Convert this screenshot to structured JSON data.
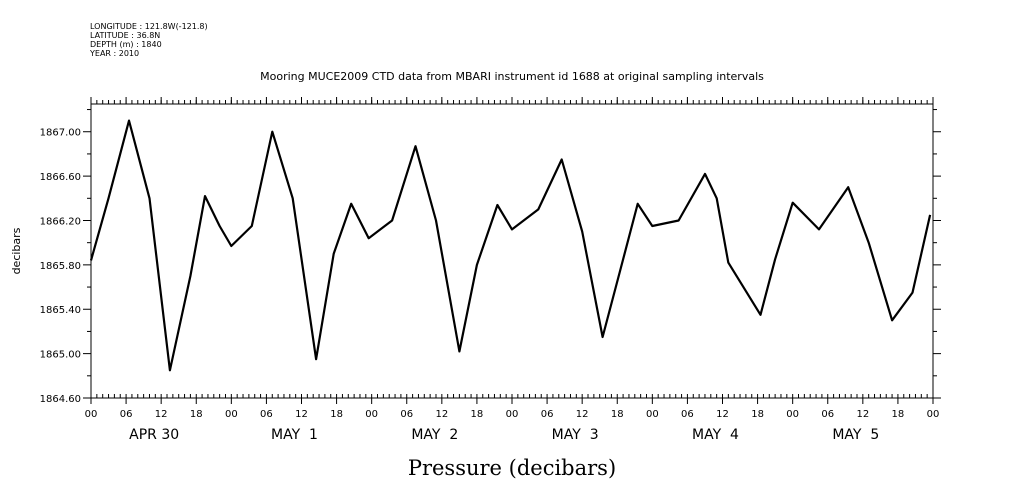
{
  "meta": {
    "longitude": "LONGITUDE : 121.8W(-121.8)",
    "latitude": "LATITUDE : 36.8N",
    "depth": "DEPTH (m) : 1840",
    "year": "YEAR : 2010"
  },
  "chart_data": {
    "type": "line",
    "title": "Mooring MUCE2009 CTD data from MBARI instrument id 1688 at original sampling intervals",
    "xlabel": "Pressure (decibars)",
    "ylabel": "decibars",
    "xlim": [
      "2010-04-30T00:00",
      "2010-05-06T00:00"
    ],
    "ylim": [
      1864.6,
      1867.25
    ],
    "yticks": [
      "1864.60",
      "1865.00",
      "1865.40",
      "1865.80",
      "1866.20",
      "1866.60",
      "1867.00"
    ],
    "xtick_hours": [
      "00",
      "06",
      "12",
      "18",
      "00",
      "06",
      "12",
      "18",
      "00",
      "06",
      "12",
      "18",
      "00",
      "06",
      "12",
      "18",
      "00",
      "06",
      "12",
      "18",
      "00",
      "06",
      "12",
      "18",
      "00"
    ],
    "day_labels": [
      "APR 30",
      "MAY  1",
      "MAY  2",
      "MAY  3",
      "MAY  4",
      "MAY  5"
    ],
    "grid": false,
    "series": [
      {
        "x": [
          "2010-04-30T00:00",
          "2010-04-30T03:00",
          "2010-04-30T06:30",
          "2010-04-30T10:00",
          "2010-04-30T13:30",
          "2010-04-30T17:00",
          "2010-04-30T19:30",
          "2010-04-30T22:00",
          "2010-05-01T00:00",
          "2010-05-01T03:30",
          "2010-05-01T07:00",
          "2010-05-01T10:30",
          "2010-05-01T14:30",
          "2010-05-01T17:30",
          "2010-05-01T20:30",
          "2010-05-01T23:30",
          "2010-05-02T03:30",
          "2010-05-02T07:30",
          "2010-05-02T11:00",
          "2010-05-02T15:00",
          "2010-05-02T18:00",
          "2010-05-02T21:30",
          "2010-05-03T00:00",
          "2010-05-03T04:30",
          "2010-05-03T08:30",
          "2010-05-03T12:00",
          "2010-05-03T15:30",
          "2010-05-03T18:30",
          "2010-05-03T21:30",
          "2010-05-04T00:00",
          "2010-05-04T04:30",
          "2010-05-04T09:00",
          "2010-05-04T11:00",
          "2010-05-04T13:00",
          "2010-05-04T18:30",
          "2010-05-04T21:00",
          "2010-05-05T00:00",
          "2010-05-05T04:30",
          "2010-05-05T09:30",
          "2010-05-05T13:00",
          "2010-05-05T17:00",
          "2010-05-05T20:30",
          "2010-05-05T23:30"
        ],
        "values": [
          1865.84,
          1866.4,
          1867.1,
          1866.4,
          1864.85,
          1865.7,
          1866.42,
          1866.15,
          1865.97,
          1866.15,
          1867.0,
          1866.4,
          1864.95,
          1865.9,
          1866.35,
          1866.04,
          1866.2,
          1866.87,
          1866.2,
          1865.02,
          1865.8,
          1866.34,
          1866.12,
          1866.3,
          1866.75,
          1866.1,
          1865.15,
          1865.75,
          1866.35,
          1866.15,
          1866.2,
          1866.62,
          1866.4,
          1865.82,
          1865.35,
          1865.85,
          1866.36,
          1866.12,
          1866.5,
          1866.0,
          1865.3,
          1865.55,
          1866.25
        ]
      }
    ]
  }
}
